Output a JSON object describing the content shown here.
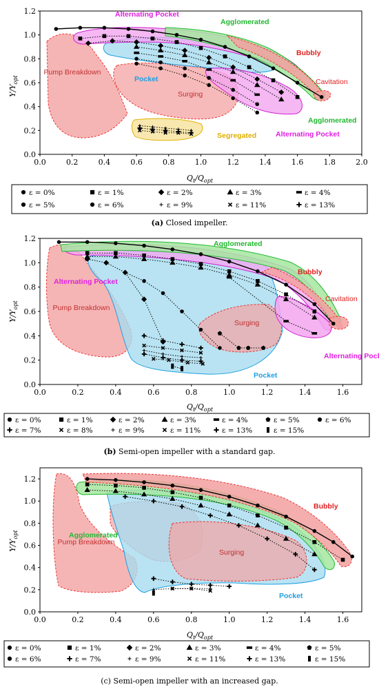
{
  "panels": [
    {
      "caption": {
        "label": "(a)",
        "text": "Closed impeller."
      },
      "ylabel": "Υ/Υ",
      "ylabel_sub": "opt",
      "xlabel": "Q",
      "xlabel_sub1": "t",
      "xlabel_mid": "/Q",
      "xlabel_sub2": "opt",
      "xticks": [
        "0.0",
        "0.2",
        "0.4",
        "0.6",
        "0.8",
        "1.0",
        "1.2",
        "1.4",
        "1.6",
        "1.8",
        "2.0"
      ],
      "yticks": [
        "0.0",
        "0.2",
        "0.4",
        "0.6",
        "0.8",
        "1.0",
        "1.2"
      ],
      "legend": [
        {
          "marker": "circle",
          "text": "ε = 0%"
        },
        {
          "marker": "square",
          "text": "ε = 1%"
        },
        {
          "marker": "diamond",
          "text": "ε = 2%"
        },
        {
          "marker": "triangle",
          "text": "ε = 3%"
        },
        {
          "marker": "dash",
          "text": "ε = 4%"
        },
        {
          "marker": "circle",
          "text": "ε = 5%"
        },
        {
          "marker": "circle",
          "text": "ε = 6%"
        },
        {
          "marker": "plus-thin",
          "text": "ε = 9%"
        },
        {
          "marker": "cross",
          "text": "ε = 11%"
        },
        {
          "marker": "plus",
          "text": "ε = 13%"
        }
      ],
      "region_labels": [
        "Alternating Pocket",
        "Agglomerated",
        "Bubbly",
        "Cavitation",
        "Pump Breakdown",
        "Pocket",
        "Surging",
        "Segregated",
        "Agglomerated",
        "Alternating Pocket"
      ]
    },
    {
      "caption": {
        "label": "(b)",
        "text": "Semi-open impeller with a standard gap."
      },
      "ylabel": "Υ/Υ",
      "ylabel_sub": "opt",
      "xlabel": "Q",
      "xlabel_sub1": "t",
      "xlabel_mid": "/Q",
      "xlabel_sub2": "opt",
      "xticks": [
        "0.0",
        "0.2",
        "0.4",
        "0.6",
        "0.8",
        "1.0",
        "1.2",
        "1.4",
        "1.6"
      ],
      "yticks": [
        "0.0",
        "0.2",
        "0.4",
        "0.6",
        "0.8",
        "1.0",
        "1.2"
      ],
      "legend": [
        {
          "marker": "circle",
          "text": "ε = 0%"
        },
        {
          "marker": "square",
          "text": "ε = 1%"
        },
        {
          "marker": "diamond",
          "text": "ε = 2%"
        },
        {
          "marker": "triangle",
          "text": "ε = 3%"
        },
        {
          "marker": "dash",
          "text": "ε = 4%"
        },
        {
          "marker": "pentagon",
          "text": "ε = 5%"
        },
        {
          "marker": "circle",
          "text": "ε = 6%"
        },
        {
          "marker": "plus",
          "text": "ε = 7%"
        },
        {
          "marker": "cross",
          "text": "ε = 8%"
        },
        {
          "marker": "plus-thin",
          "text": "ε = 9%"
        },
        {
          "marker": "cross",
          "text": "ε = 11%"
        },
        {
          "marker": "plus",
          "text": "ε = 13%"
        },
        {
          "marker": "bar",
          "text": "ε = 15%"
        }
      ],
      "region_labels": [
        "Agglomerated",
        "Alternating Pocket",
        "Pump Breakdown",
        "Bubbly",
        "Cavitation",
        "Surging",
        "Alternating Pocket",
        "Pocket"
      ]
    },
    {
      "caption": {
        "label": "(c)",
        "text": "Semi-open impeller with an increased gap."
      },
      "ylabel": "Υ/Υ",
      "ylabel_sub": "opt",
      "xlabel": "Q",
      "xlabel_sub1": "t",
      "xlabel_mid": "/Q",
      "xlabel_sub2": "opt",
      "xticks": [
        "0.0",
        "0.2",
        "0.4",
        "0.6",
        "0.8",
        "1.0",
        "1.2",
        "1.4",
        "1.6"
      ],
      "yticks": [
        "0.0",
        "0.2",
        "0.4",
        "0.6",
        "0.8",
        "1.0",
        "1.2"
      ],
      "legend": [
        {
          "marker": "circle",
          "text": "ε = 0%"
        },
        {
          "marker": "square",
          "text": "ε = 1%"
        },
        {
          "marker": "diamond",
          "text": "ε = 2%"
        },
        {
          "marker": "triangle",
          "text": "ε = 3%"
        },
        {
          "marker": "dash",
          "text": "ε = 4%"
        },
        {
          "marker": "pentagon",
          "text": "ε = 5%"
        },
        {
          "marker": "circle",
          "text": "ε = 6%"
        },
        {
          "marker": "plus",
          "text": "ε = 7%"
        },
        {
          "marker": "plus-thin",
          "text": "ε = 9%"
        },
        {
          "marker": "cross",
          "text": "ε = 11%"
        },
        {
          "marker": "plus",
          "text": "ε = 13%"
        },
        {
          "marker": "bar",
          "text": "ε = 15%"
        }
      ],
      "region_labels": [
        "Bubbly",
        "Agglomerated",
        "Pump Breakdown",
        "Surging",
        "Pocket"
      ]
    }
  ],
  "colors": {
    "breakdown": "#f4a3a3",
    "surging": "#b88aa8",
    "pocket": "#a8dcef",
    "alternating": "#f3a6f0",
    "agglomerated": "#a6e6a0",
    "bubbly": "#f2a0a0",
    "segregated": "#f7e6a6",
    "label_red": "#e02020",
    "label_green": "#22b830",
    "label_magenta": "#e020e0",
    "label_blue": "#1e9fe0",
    "label_yellow": "#e0b000"
  },
  "chart_data": [
    {
      "type": "scatter",
      "xlim": [
        0.0,
        2.0
      ],
      "ylim": [
        0.0,
        1.2
      ],
      "series": [
        {
          "name": "ε = 0%",
          "x": [
            0.1,
            0.25,
            0.4,
            0.55,
            0.7,
            0.85,
            1.0,
            1.15,
            1.3,
            1.45,
            1.6,
            1.75
          ],
          "y": [
            1.05,
            1.06,
            1.06,
            1.05,
            1.03,
            1.0,
            0.96,
            0.9,
            0.82,
            0.72,
            0.6,
            0.48
          ]
        },
        {
          "name": "ε = 1%",
          "x": [
            0.25,
            0.4,
            0.55,
            0.7,
            0.85,
            1.0,
            1.15,
            1.3,
            1.45,
            1.6
          ],
          "y": [
            0.97,
            0.99,
            0.99,
            0.97,
            0.94,
            0.89,
            0.82,
            0.73,
            0.62,
            0.48
          ]
        },
        {
          "name": "ε = 2%",
          "x": [
            0.3,
            0.45,
            0.6,
            0.75,
            0.9,
            1.05,
            1.2,
            1.35,
            1.5
          ],
          "y": [
            0.93,
            0.95,
            0.94,
            0.91,
            0.87,
            0.81,
            0.73,
            0.63,
            0.52
          ]
        },
        {
          "name": "ε = 3%",
          "x": [
            0.6,
            0.75,
            0.9,
            1.05,
            1.2,
            1.35,
            1.5
          ],
          "y": [
            0.9,
            0.87,
            0.83,
            0.77,
            0.69,
            0.58,
            0.46
          ]
        },
        {
          "name": "ε = 4%",
          "x": [
            0.6,
            0.75,
            0.9,
            1.05,
            1.2,
            1.35
          ],
          "y": [
            0.85,
            0.82,
            0.78,
            0.71,
            0.62,
            0.5
          ]
        },
        {
          "name": "ε = 5%",
          "x": [
            0.6,
            0.75,
            0.9,
            1.05,
            1.2,
            1.35
          ],
          "y": [
            0.8,
            0.77,
            0.72,
            0.64,
            0.54,
            0.42
          ]
        },
        {
          "name": "ε = 6%",
          "x": [
            0.6,
            0.75,
            0.9,
            1.05,
            1.2,
            1.35
          ],
          "y": [
            0.76,
            0.72,
            0.66,
            0.58,
            0.47,
            0.35
          ]
        },
        {
          "name": "ε = 9%",
          "x": [
            0.62,
            0.7,
            0.78,
            0.86,
            0.94
          ],
          "y": [
            0.24,
            0.23,
            0.22,
            0.21,
            0.2
          ]
        },
        {
          "name": "ε = 11%",
          "x": [
            0.62,
            0.7,
            0.78,
            0.86,
            0.94
          ],
          "y": [
            0.2,
            0.19,
            0.18,
            0.18,
            0.17
          ]
        },
        {
          "name": "ε = 13%",
          "x": [
            0.62,
            0.7,
            0.78,
            0.86,
            0.94
          ],
          "y": [
            0.22,
            0.21,
            0.2,
            0.19,
            0.18
          ]
        }
      ]
    },
    {
      "type": "scatter",
      "xlim": [
        0.0,
        1.7
      ],
      "ylim": [
        0.0,
        1.2
      ],
      "series": [
        {
          "name": "ε = 0%",
          "x": [
            0.1,
            0.25,
            0.4,
            0.55,
            0.7,
            0.85,
            1.0,
            1.15,
            1.3,
            1.45,
            1.55
          ],
          "y": [
            1.17,
            1.17,
            1.16,
            1.14,
            1.11,
            1.07,
            1.01,
            0.93,
            0.82,
            0.66,
            0.5
          ]
        },
        {
          "name": "ε = 1%",
          "x": [
            0.25,
            0.4,
            0.55,
            0.7,
            0.85,
            1.0,
            1.15,
            1.3,
            1.45
          ],
          "y": [
            1.08,
            1.08,
            1.06,
            1.03,
            0.99,
            0.93,
            0.85,
            0.74,
            0.6
          ]
        },
        {
          "name": "ε = 2%",
          "x": [
            0.25,
            0.35,
            0.45,
            0.55,
            0.65
          ],
          "y": [
            1.03,
            1.0,
            0.92,
            0.7,
            0.35
          ]
        },
        {
          "name": "ε = 3%",
          "x": [
            0.25,
            0.4,
            0.55,
            0.7,
            0.85,
            1.0,
            1.15,
            1.3,
            1.45
          ],
          "y": [
            1.05,
            1.05,
            1.03,
            1.0,
            0.96,
            0.9,
            0.82,
            0.7,
            0.55
          ]
        },
        {
          "name": "ε = 4%",
          "x": [
            1.0,
            1.3,
            1.45
          ],
          "y": [
            0.88,
            0.52,
            0.42
          ]
        },
        {
          "name": "ε = 5%",
          "x": [
            0.95,
            1.05,
            1.1,
            1.18
          ],
          "y": [
            0.42,
            0.3,
            0.3,
            0.3
          ]
        },
        {
          "name": "ε = 6%",
          "x": [
            0.45,
            0.55,
            0.65,
            0.75,
            0.85,
            0.95
          ],
          "y": [
            0.92,
            0.85,
            0.75,
            0.6,
            0.45,
            0.3
          ]
        },
        {
          "name": "ε = 7%",
          "x": [
            0.55,
            0.65,
            0.75,
            0.85
          ],
          "y": [
            0.4,
            0.36,
            0.33,
            0.3
          ]
        },
        {
          "name": "ε = 8%",
          "x": [
            0.55,
            0.65,
            0.75,
            0.85
          ],
          "y": [
            0.32,
            0.3,
            0.28,
            0.26
          ]
        },
        {
          "name": "ε = 9%",
          "x": [
            0.55,
            0.65,
            0.75,
            0.85
          ],
          "y": [
            0.28,
            0.25,
            0.23,
            0.22
          ]
        },
        {
          "name": "ε = 11%",
          "x": [
            0.6,
            0.68,
            0.78,
            0.86
          ],
          "y": [
            0.21,
            0.2,
            0.18,
            0.17
          ]
        },
        {
          "name": "ε = 13%",
          "x": [
            0.55,
            0.65,
            0.75,
            0.85
          ],
          "y": [
            0.25,
            0.22,
            0.2,
            0.19
          ]
        },
        {
          "name": "ε = 15%",
          "x": [
            0.7,
            0.75
          ],
          "y": [
            0.15,
            0.13
          ]
        }
      ]
    },
    {
      "type": "scatter",
      "xlim": [
        0.0,
        1.7
      ],
      "ylim": [
        0.0,
        1.3
      ],
      "series": [
        {
          "name": "ε = 0%",
          "x": [
            0.25,
            0.4,
            0.55,
            0.7,
            0.85,
            1.0,
            1.15,
            1.3,
            1.45,
            1.55,
            1.65
          ],
          "y": [
            1.2,
            1.19,
            1.17,
            1.14,
            1.1,
            1.04,
            0.96,
            0.86,
            0.73,
            0.63,
            0.5
          ]
        },
        {
          "name": "ε = 1%",
          "x": [
            0.25,
            0.4,
            0.55,
            0.7,
            0.85,
            1.0,
            1.15,
            1.3,
            1.45,
            1.6
          ],
          "y": [
            1.15,
            1.14,
            1.12,
            1.08,
            1.03,
            0.96,
            0.87,
            0.76,
            0.63,
            0.47
          ]
        },
        {
          "name": "ε = 3%",
          "x": [
            0.25,
            0.4,
            0.55,
            0.7,
            0.85,
            1.0,
            1.15,
            1.3,
            1.45
          ],
          "y": [
            1.1,
            1.09,
            1.06,
            1.02,
            0.96,
            0.88,
            0.78,
            0.66,
            0.52
          ]
        },
        {
          "name": "ε = 7%",
          "x": [
            0.45,
            0.6,
            0.75,
            0.9,
            1.05,
            1.2,
            1.35,
            1.45
          ],
          "y": [
            1.04,
            1.0,
            0.95,
            0.87,
            0.78,
            0.66,
            0.52,
            0.38
          ]
        },
        {
          "name": "ε = 9%",
          "x": [
            0.6,
            0.7,
            0.8,
            0.9
          ],
          "y": [
            0.2,
            0.21,
            0.21,
            0.21
          ]
        },
        {
          "name": "ε = 11%",
          "x": [
            0.7,
            0.8,
            0.9
          ],
          "y": [
            0.21,
            0.21,
            0.19
          ]
        },
        {
          "name": "ε = 13%",
          "x": [
            0.6,
            0.7,
            0.8,
            0.9,
            1.0
          ],
          "y": [
            0.3,
            0.27,
            0.25,
            0.24,
            0.23
          ]
        },
        {
          "name": "ε = 15%",
          "x": [
            0.6
          ],
          "y": [
            0.17
          ]
        }
      ]
    }
  ]
}
